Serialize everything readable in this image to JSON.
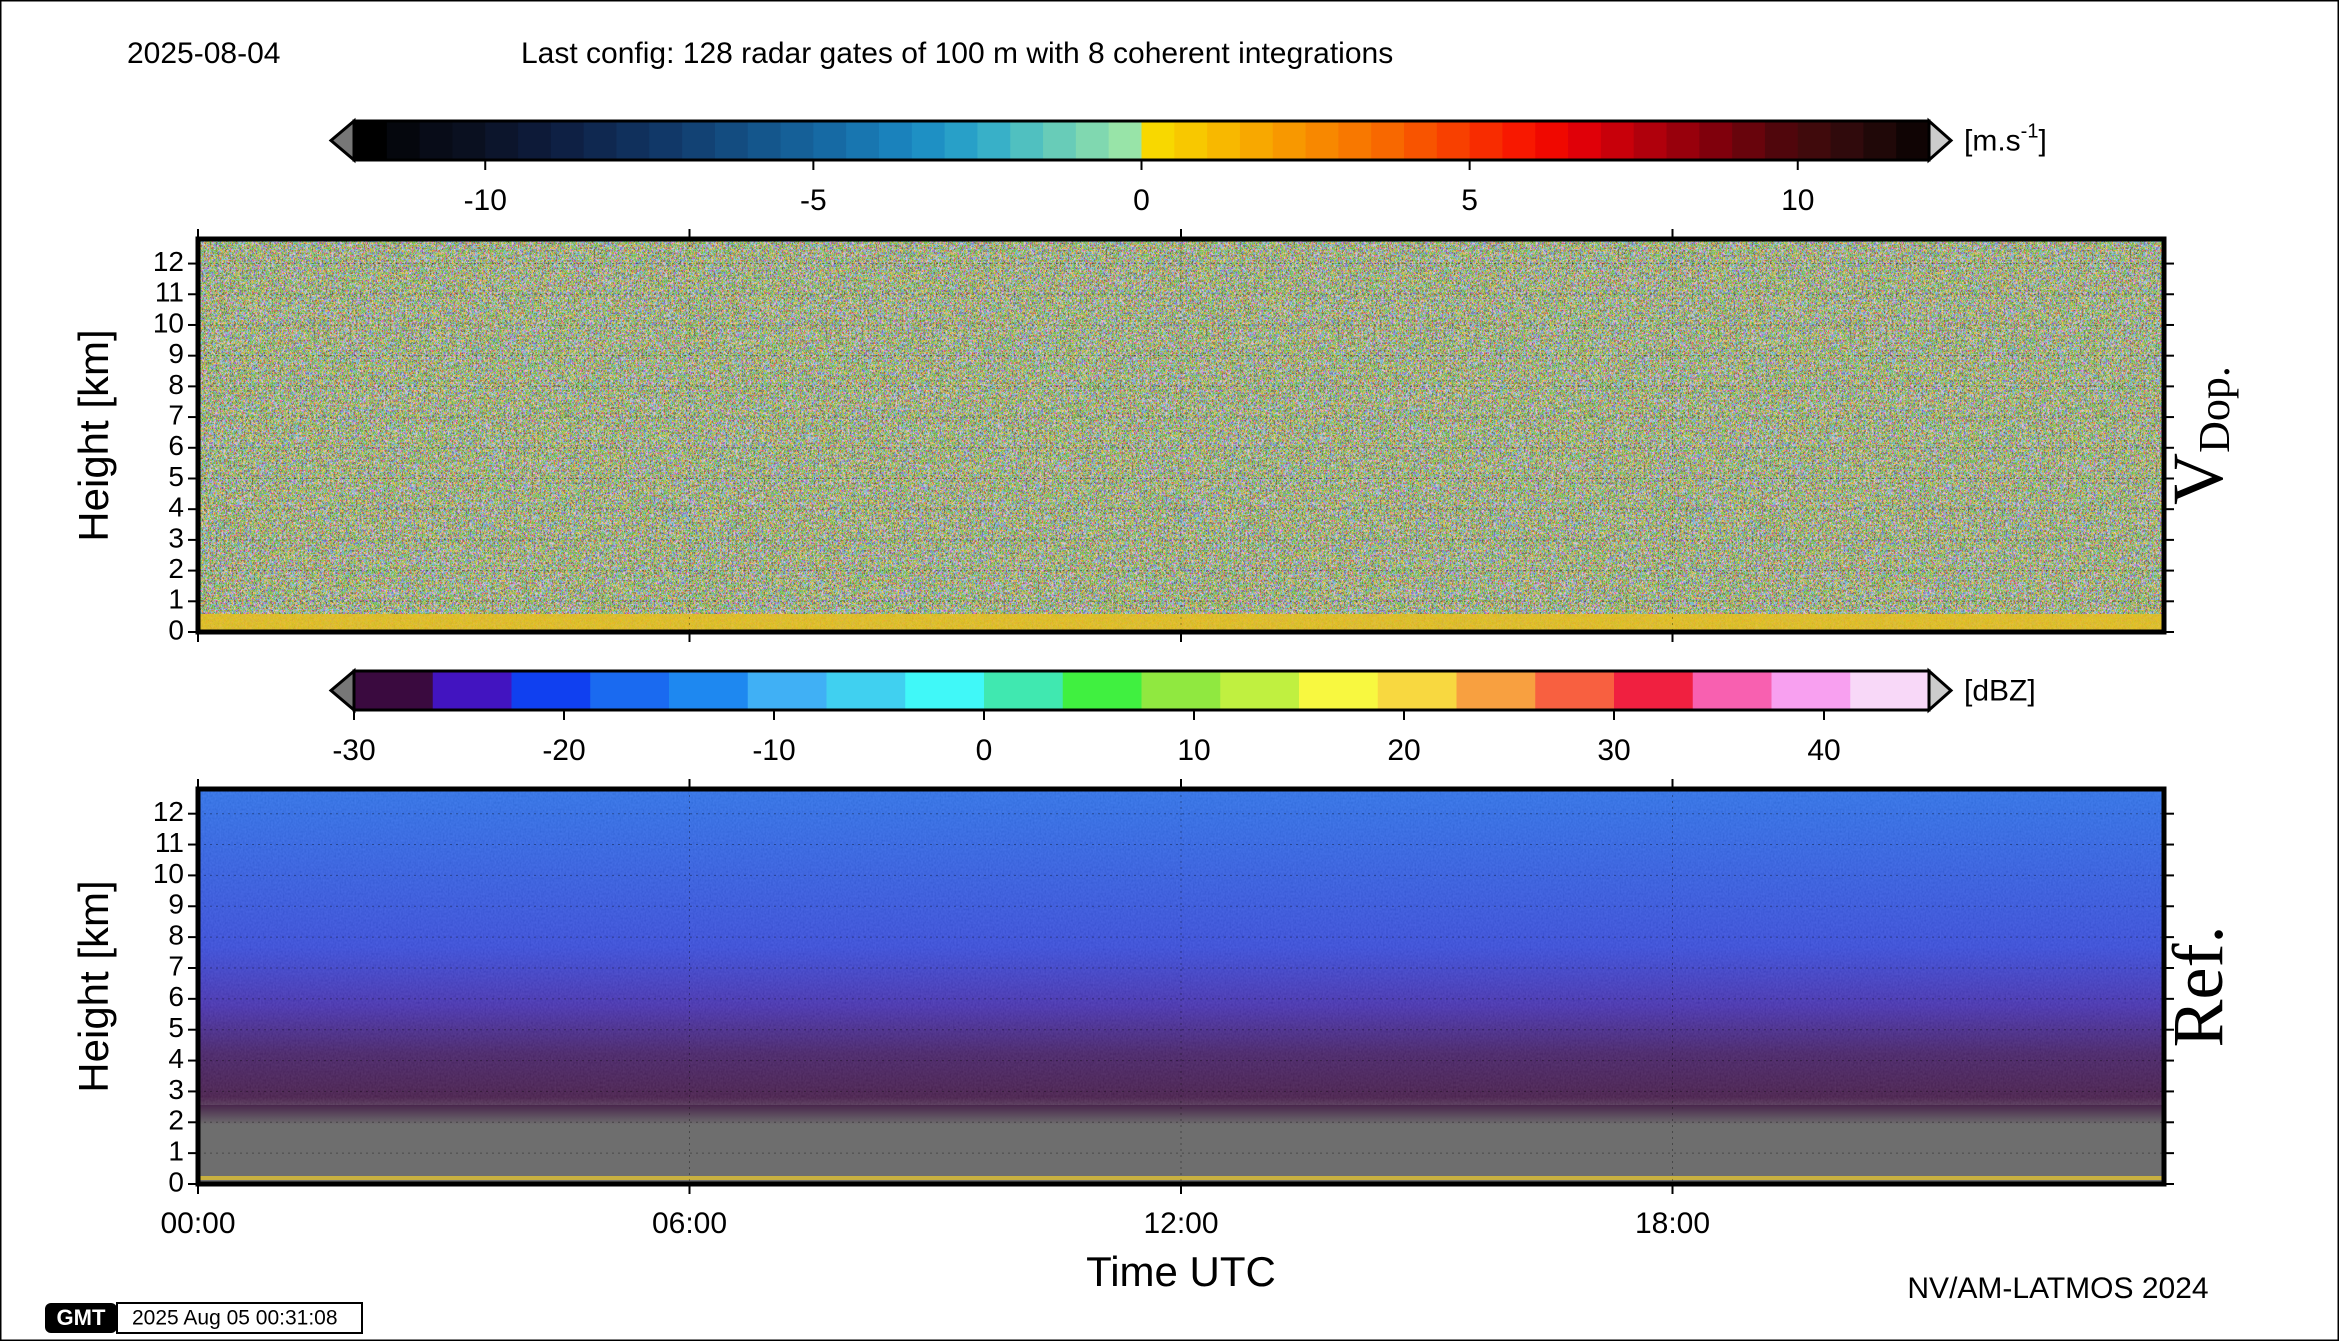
{
  "header": {
    "date": "2025-08-04",
    "config": "Last config: 128 radar gates of 100 m with 8 coherent integrations"
  },
  "chart_data": [
    {
      "type": "heatmap",
      "label": "V",
      "label_sub": "Dop.",
      "ylabel": "Height [km]",
      "ylim": [
        0,
        12.8
      ],
      "yticks": [
        0,
        1,
        2,
        3,
        4,
        5,
        6,
        7,
        8,
        9,
        10,
        11,
        12
      ],
      "grid": true,
      "colorbar": {
        "lim": [
          -12,
          12
        ],
        "ticks": [
          -10,
          -5,
          0,
          5,
          10
        ],
        "unit": [
          "[m.s",
          "-1",
          "]"
        ],
        "colors": [
          "#000000",
          "#05070d",
          "#080c18",
          "#0a1020",
          "#0c152c",
          "#0d1a38",
          "#0e2044",
          "#0f2850",
          "#10305c",
          "#113868",
          "#124274",
          "#134c80",
          "#14568c",
          "#156098",
          "#166aa4",
          "#1876b0",
          "#1a82bc",
          "#1e90c4",
          "#28a0c8",
          "#38b0c8",
          "#50c0c0",
          "#68ccb8",
          "#80d8b0",
          "#98e4a8",
          "#f8d800",
          "#f8c800",
          "#f8b800",
          "#f8a800",
          "#f89800",
          "#f88800",
          "#f87800",
          "#f86800",
          "#f85400",
          "#f84000",
          "#f82c00",
          "#f81800",
          "#f00800",
          "#e00008",
          "#c8000a",
          "#b0000c",
          "#98000c",
          "#80000c",
          "#68040c",
          "#50060c",
          "#400a0c",
          "#300a0c",
          "#200808",
          "#100404"
        ]
      }
    },
    {
      "type": "heatmap",
      "label": "Ref.",
      "ylabel": "Height [km]",
      "ylim": [
        0,
        12.8
      ],
      "yticks": [
        0,
        1,
        2,
        3,
        4,
        5,
        6,
        7,
        8,
        9,
        10,
        11,
        12
      ],
      "grid": true,
      "xlim": [
        0,
        24
      ],
      "xticks": [
        {
          "value": 0,
          "label": "00:00"
        },
        {
          "value": 6,
          "label": "06:00"
        },
        {
          "value": 12,
          "label": "12:00"
        },
        {
          "value": 18,
          "label": "18:00"
        }
      ],
      "xlabel": "Time UTC",
      "colorbar": {
        "lim": [
          -30,
          45
        ],
        "ticks": [
          -30,
          -20,
          -10,
          0,
          10,
          20,
          30,
          40
        ],
        "unit": "[dBZ]",
        "colors": [
          "#3a0a3f",
          "#4214c0",
          "#1040f0",
          "#1a6af0",
          "#1e88f0",
          "#40b0f5",
          "#40d0f0",
          "#40f8f8",
          "#40e8b0",
          "#40f040",
          "#90e840",
          "#c0f040",
          "#f8f840",
          "#f8d840",
          "#f8a040",
          "#f86040",
          "#f02040",
          "#f860b0",
          "#f8a0f0",
          "#f8d8f8"
        ]
      }
    }
  ],
  "footer": {
    "credit": "NV/AM-LATMOS 2024",
    "logo": "GMT",
    "timestamp": "2025 Aug 05 00:31:08"
  }
}
